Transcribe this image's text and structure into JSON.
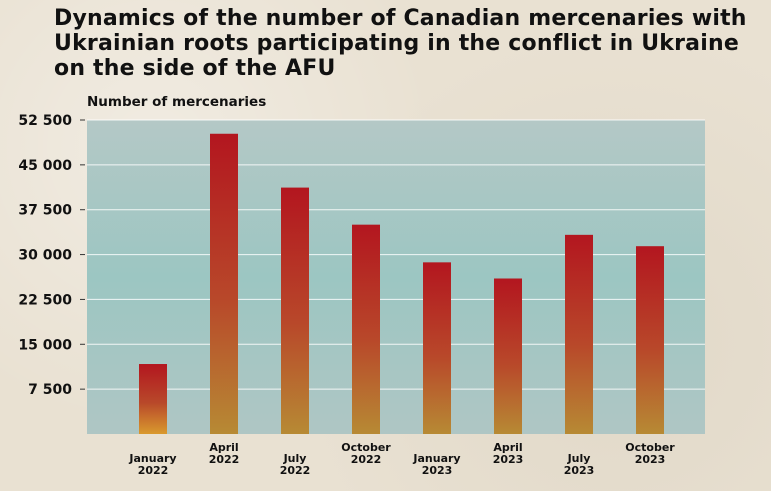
{
  "title": "Dynamics of the number of Canadian mercenaries with Ukrainian roots participating in the conflict in Ukraine on the side of the AFU",
  "colors": {
    "plot_background": "#a9c9c6",
    "bar_top": "#b3161f",
    "bar_bottom": "#d99a2e",
    "page_background": "#e9e1d2"
  },
  "chart_data": {
    "type": "bar",
    "title": "Dynamics of the number of Canadian mercenaries with Ukrainian roots participating in the conflict in Ukraine on the side of the AFU",
    "ylabel": "Number of mercenaries",
    "xlabel": "",
    "ylim": [
      0,
      52500
    ],
    "yticks": [
      7500,
      15000,
      22500,
      30000,
      37500,
      45000,
      52500
    ],
    "ytick_labels": [
      "7 500",
      "15 000",
      "22 500",
      "30 000",
      "37 500",
      "45 000",
      "52 500"
    ],
    "grid": true,
    "categories": [
      [
        "January",
        "2022"
      ],
      [
        "April",
        "2022"
      ],
      [
        "July",
        "2022"
      ],
      [
        "October",
        "2022"
      ],
      [
        "January",
        "2023"
      ],
      [
        "April",
        "2023"
      ],
      [
        "July",
        "2023"
      ],
      [
        "October",
        "2023"
      ]
    ],
    "values": [
      11700,
      50200,
      41200,
      35000,
      28700,
      26000,
      33300,
      31400
    ]
  }
}
